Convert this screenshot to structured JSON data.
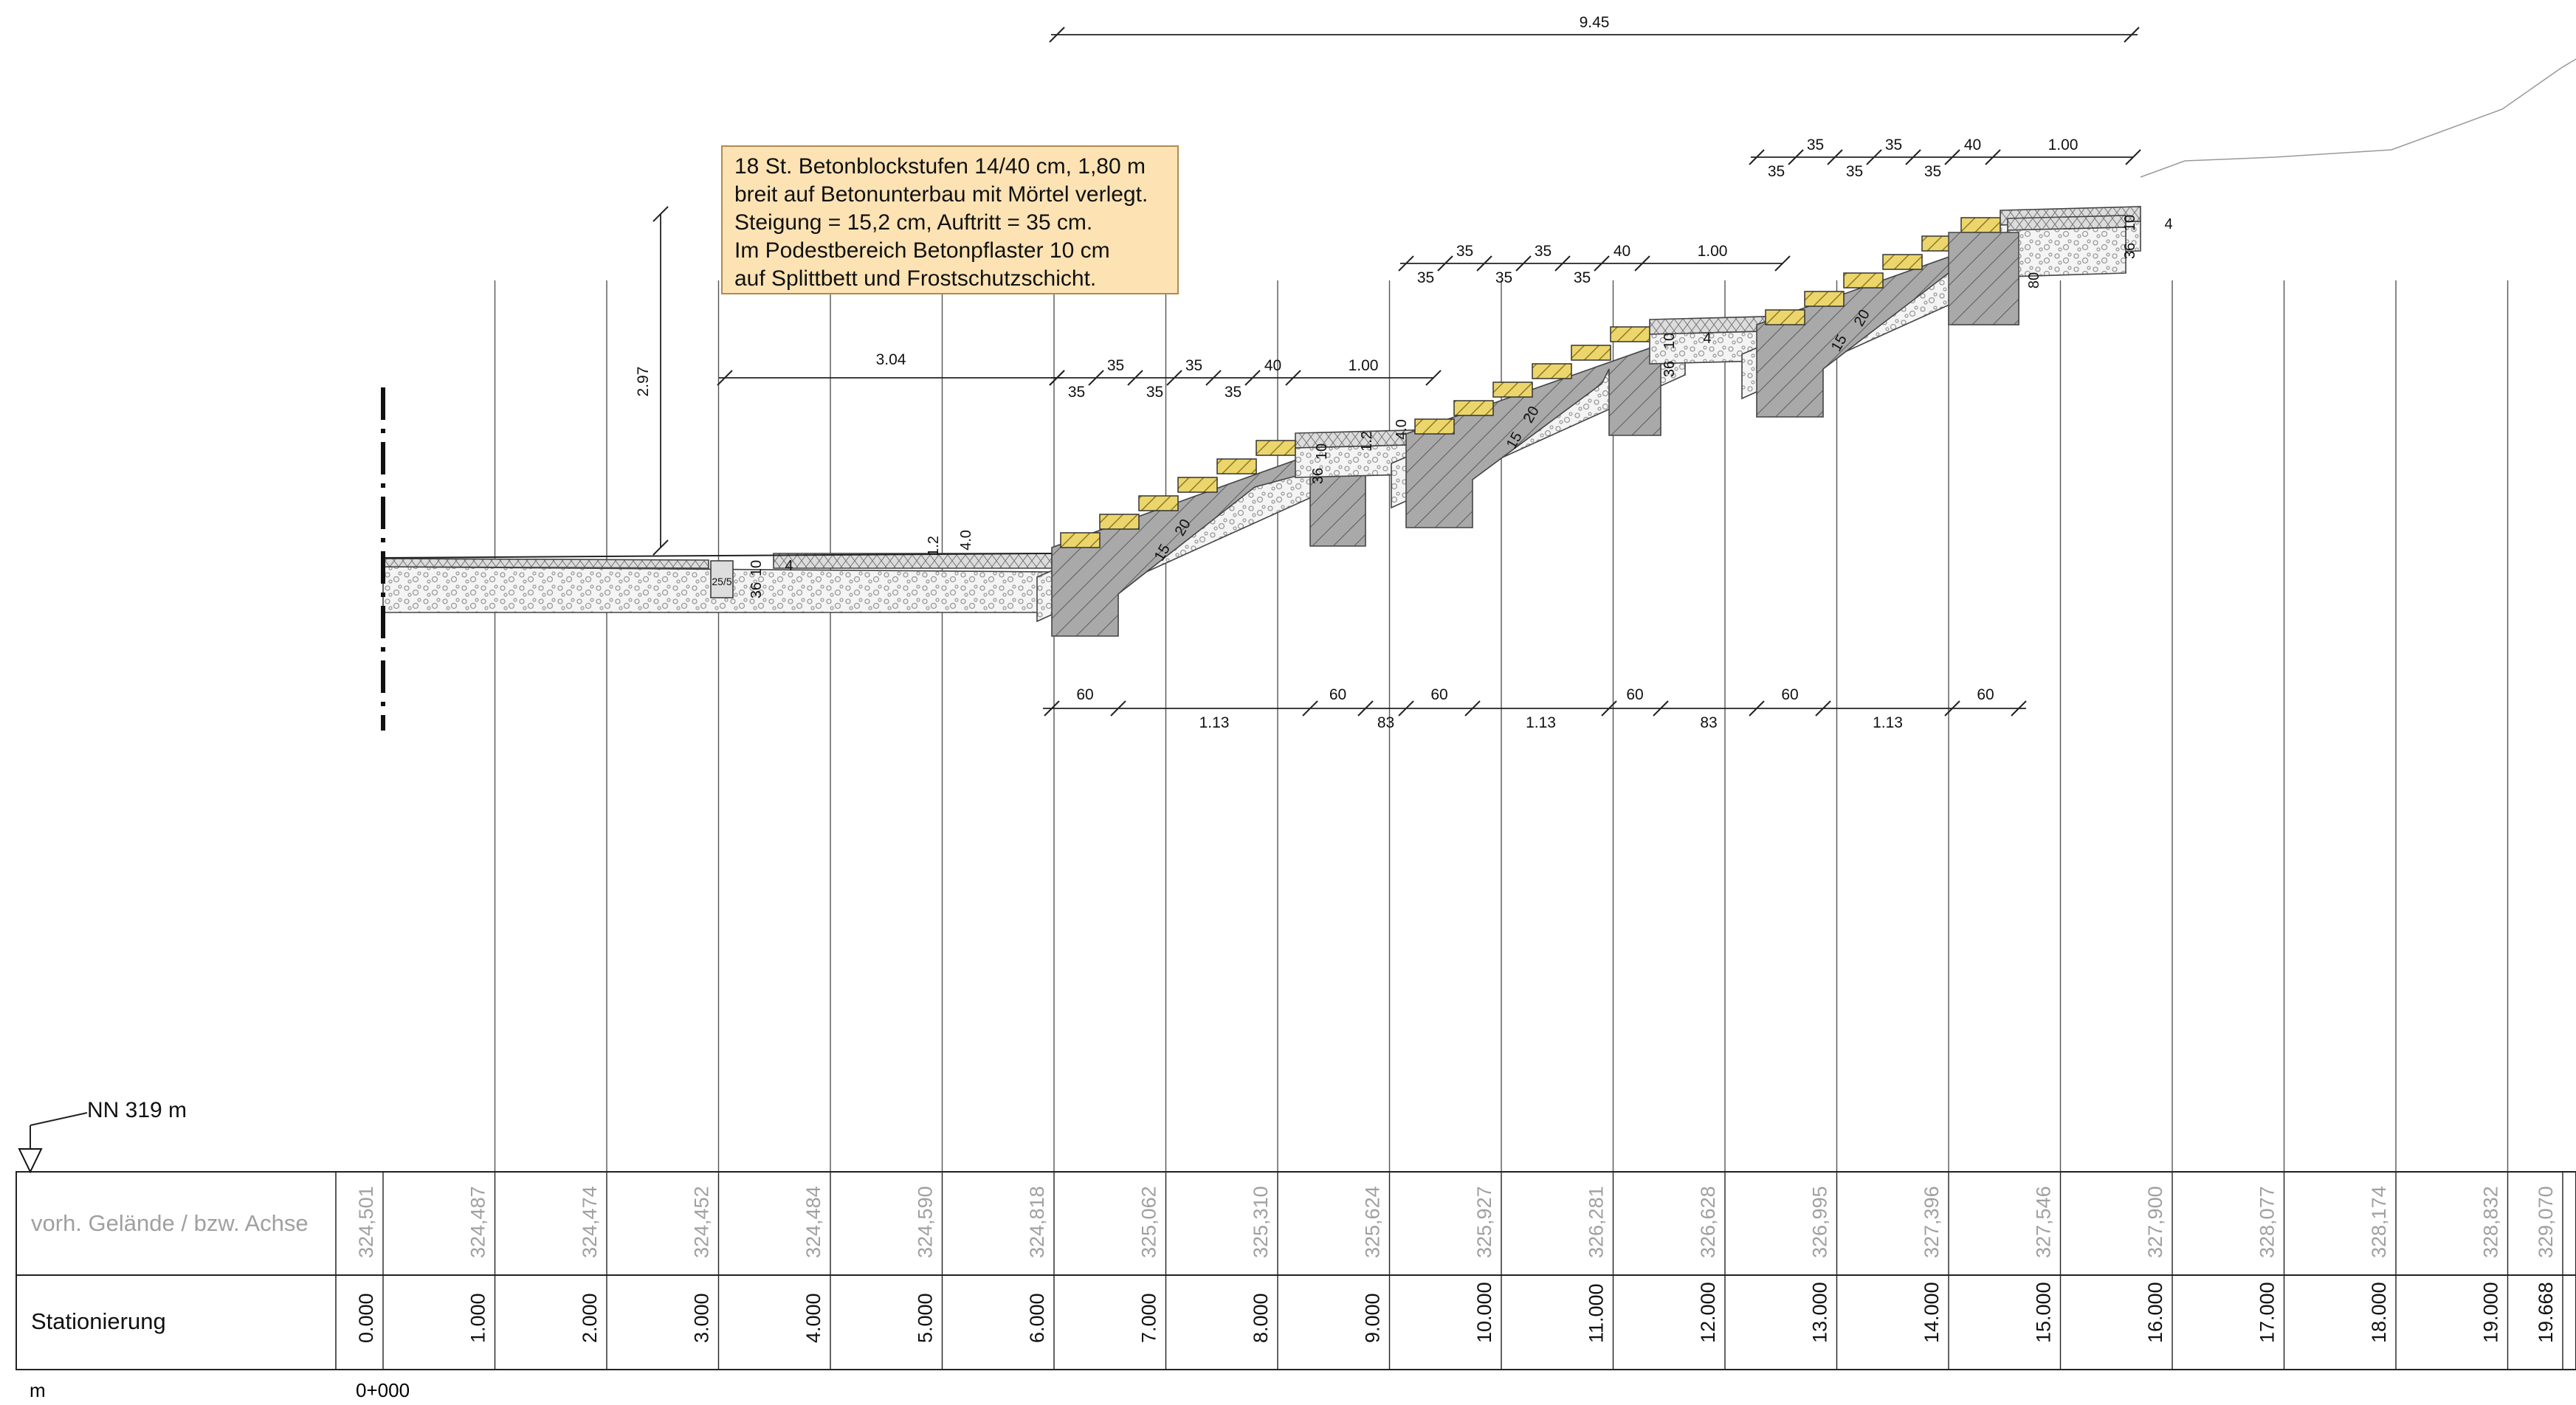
{
  "note": {
    "lines": [
      "18 St. Betonblockstufen 14/40 cm, 1,80 m",
      "breit auf Betonunterbau mit Mörtel verlegt.",
      "Steigung = 15,2 cm, Auftritt = 35 cm.",
      "Im Podestbereich Betonpflaster 10 cm",
      "auf Splittbett und Frostschutzschicht."
    ]
  },
  "datum_label": "NN 319 m",
  "table": {
    "row1_label": "vorh. Gelände / bzw. Achse",
    "row2_label": "Stationierung",
    "unit": "m",
    "start_station": "0+000",
    "stations": [
      "0.000",
      "1.000",
      "2.000",
      "3.000",
      "4.000",
      "5.000",
      "6.000",
      "7.000",
      "8.000",
      "9.000",
      "10.000",
      "11.000",
      "12.000",
      "13.000",
      "14.000",
      "15.000",
      "16.000",
      "17.000",
      "18.000",
      "19.000",
      "19.668"
    ],
    "elevations": [
      "324,501",
      "324,487",
      "324,474",
      "324,452",
      "324,484",
      "324,590",
      "324,818",
      "325,062",
      "325,310",
      "325,624",
      "325,927",
      "326,281",
      "326,628",
      "326,995",
      "327,396",
      "327,546",
      "327,900",
      "328,077",
      "328,174",
      "328,832",
      "329,070"
    ]
  },
  "dimensions": {
    "total": "9.45",
    "height": "2.97",
    "podest_left": "3.04",
    "tread": "35",
    "last_step": "40",
    "landing": "1.00",
    "found_width": "60",
    "found_gap_a": "1.13",
    "found_gap_b": "83",
    "thk_10": "10",
    "thk_36": "36",
    "thk_80": "80",
    "thk_20": "20",
    "thk_15": "15",
    "thk_4": "4",
    "thk_12": "1.2",
    "thk_40": "4.0",
    "small_255": "25/5",
    "small_4": "4"
  },
  "colors": {
    "step": "#ecd66b",
    "concrete": "#a8a8a8",
    "gravel": "#f2f2f2",
    "note_bg": "#fde3b4",
    "grey_text": "#a0a0a0"
  }
}
